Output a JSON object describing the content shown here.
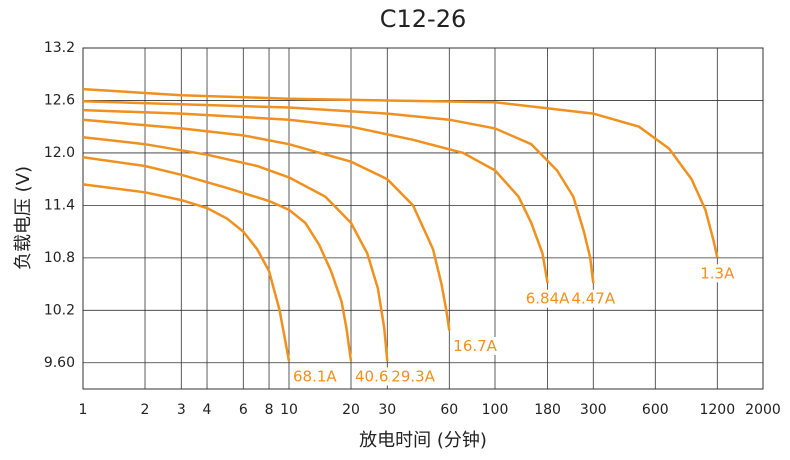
{
  "chart_data": {
    "type": "line",
    "title": "C12-26",
    "xlabel": "放电时间 (分钟)",
    "ylabel": "负载电压 (V)",
    "xscale": "log",
    "grid": true,
    "xlim": [
      1,
      2000
    ],
    "ylim": [
      9.3,
      13.2
    ],
    "xticks": [
      1,
      2,
      3,
      4,
      6,
      8,
      10,
      20,
      30,
      60,
      100,
      180,
      300,
      600,
      1200,
      2000
    ],
    "yticks": [
      {
        "value": 9.6,
        "label": "9.60"
      },
      10.2,
      10.8,
      11.4,
      {
        "value": 12,
        "label": "12.0"
      },
      12.6,
      13.2
    ],
    "series": [
      {
        "name": "68.1A",
        "color": "#f0901e",
        "x": [
          1,
          2,
          3,
          4,
          5,
          6,
          7,
          8,
          9,
          10
        ],
        "values": [
          11.64,
          11.55,
          11.46,
          11.37,
          11.25,
          11.1,
          10.9,
          10.65,
          10.2,
          9.62
        ]
      },
      {
        "name": "40.6A",
        "color": "#f0901e",
        "x": [
          1,
          2,
          3,
          5,
          8,
          10,
          12,
          14,
          16,
          18,
          19,
          20
        ],
        "values": [
          11.95,
          11.85,
          11.75,
          11.6,
          11.45,
          11.35,
          11.2,
          10.95,
          10.65,
          10.3,
          10.0,
          9.62
        ]
      },
      {
        "name": "29.3A",
        "color": "#f0901e",
        "x": [
          1,
          2,
          4,
          7,
          10,
          15,
          20,
          24,
          27,
          29,
          30
        ],
        "values": [
          12.18,
          12.1,
          11.98,
          11.85,
          11.72,
          11.5,
          11.2,
          10.85,
          10.45,
          10.0,
          9.62
        ]
      },
      {
        "name": "16.7A",
        "color": "#f0901e",
        "x": [
          1,
          3,
          6,
          10,
          20,
          30,
          40,
          50,
          55,
          58,
          60
        ],
        "values": [
          12.38,
          12.28,
          12.2,
          12.1,
          11.9,
          11.7,
          11.4,
          10.9,
          10.5,
          10.2,
          9.97
        ]
      },
      {
        "name": "6.84A",
        "color": "#f0901e",
        "x": [
          1,
          3,
          10,
          20,
          40,
          70,
          100,
          130,
          150,
          170,
          180
        ],
        "values": [
          12.49,
          12.45,
          12.38,
          12.3,
          12.15,
          12.0,
          11.8,
          11.5,
          11.2,
          10.85,
          10.51
        ]
      },
      {
        "name": "4.47A",
        "color": "#f0901e",
        "x": [
          1,
          10,
          30,
          60,
          100,
          150,
          200,
          240,
          270,
          290,
          300
        ],
        "values": [
          12.59,
          12.52,
          12.45,
          12.38,
          12.28,
          12.1,
          11.8,
          11.5,
          11.1,
          10.8,
          10.51
        ]
      },
      {
        "name": "1.3A",
        "color": "#f0901e",
        "x": [
          1,
          3,
          10,
          30,
          100,
          300,
          500,
          700,
          900,
          1050,
          1150,
          1200
        ],
        "values": [
          12.73,
          12.66,
          12.62,
          12.6,
          12.58,
          12.45,
          12.3,
          12.05,
          11.7,
          11.35,
          11.0,
          10.8
        ]
      }
    ]
  }
}
